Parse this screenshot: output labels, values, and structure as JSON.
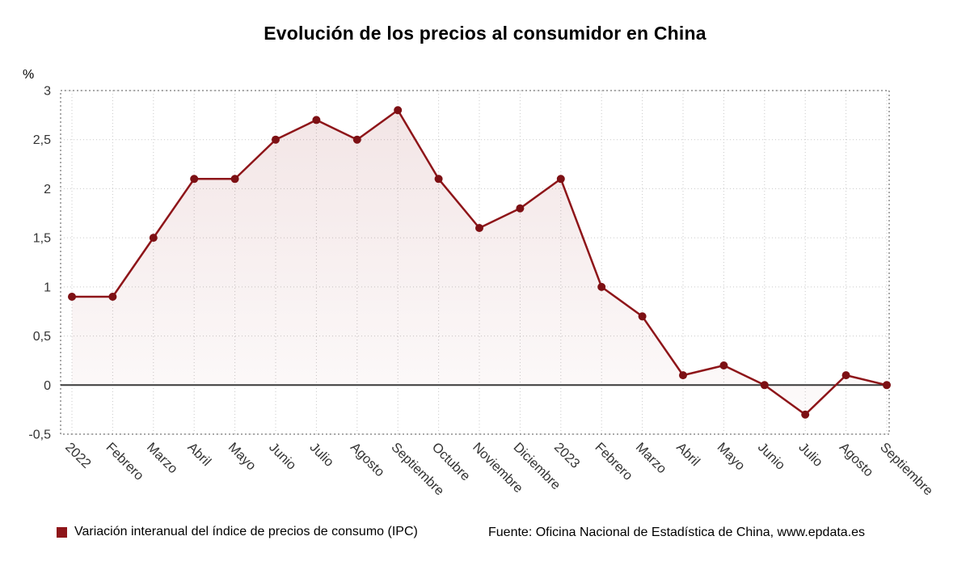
{
  "title": "Evolución de los precios al consumidor en China",
  "y_axis_unit": "%",
  "legend": {
    "series_label": "Variación interanual del índice de precios de consumo (IPC)",
    "source": "Fuente: Oficina Nacional de Estadística de China, www.epdata.es"
  },
  "colors": {
    "line": "#8e1519",
    "marker": "#7d1014",
    "legend_swatch": "#8e1519",
    "fill_top": "rgba(142,21,25,0.11)",
    "fill_bottom": "rgba(142,21,25,0.02)",
    "grid": "#c9c9c9",
    "plot_border": "#555555",
    "zero_line": "#3a3a3a",
    "tick_text": "#333333"
  },
  "chart_data": {
    "type": "line",
    "categories": [
      "2022",
      "Febrero",
      "Marzo",
      "Abril",
      "Mayo",
      "Junio",
      "Julio",
      "Agosto",
      "Septiembre",
      "Octubre",
      "Noviembre",
      "Diciembre",
      "2023",
      "Febrero",
      "Marzo",
      "Abril",
      "Mayo",
      "Junio",
      "Julio",
      "Agosto",
      "Septiembre"
    ],
    "series": [
      {
        "name": "Variación interanual del índice de precios de consumo (IPC)",
        "values": [
          0.9,
          0.9,
          1.5,
          2.1,
          2.1,
          2.5,
          2.7,
          2.5,
          2.8,
          2.1,
          1.6,
          1.8,
          2.1,
          1.0,
          0.7,
          0.1,
          0.2,
          0.0,
          -0.3,
          0.1,
          0.0
        ]
      }
    ],
    "title": "Evolución de los precios al consumidor en China",
    "xlabel": "",
    "ylabel": "%",
    "ylim": [
      -0.5,
      3
    ],
    "yticks": [
      3,
      2.5,
      2,
      1.5,
      1,
      0.5,
      0,
      -0.5
    ],
    "ytick_labels": [
      "3",
      "2,5",
      "2",
      "1,5",
      "1",
      "0,5",
      "0",
      "-0,5"
    ],
    "grid": true,
    "legend_position": "bottom",
    "area_fill": true,
    "baseline": 0,
    "x_label_rotation_deg": 45
  }
}
